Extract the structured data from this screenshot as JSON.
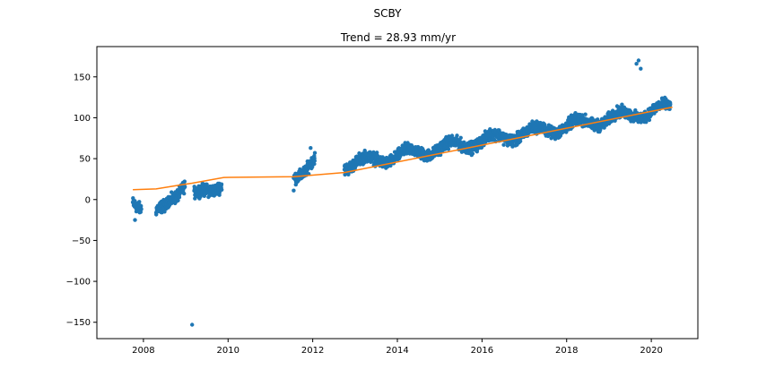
{
  "figure": {
    "suptitle": "SCBY"
  },
  "chart_data": {
    "type": "scatter",
    "title": "Trend = 28.93 mm/yr",
    "xlabel": "",
    "ylabel": "",
    "xlim": [
      2006.9,
      2021.1
    ],
    "ylim": [
      -170,
      187
    ],
    "x_ticks": [
      2008,
      2010,
      2012,
      2014,
      2016,
      2018,
      2020
    ],
    "y_ticks": [
      -150,
      -100,
      -50,
      0,
      50,
      100,
      150
    ],
    "grid": false,
    "colors": {
      "points": "#1f77b4",
      "trend": "#ff7f0e"
    },
    "series": [
      {
        "type": "scatter",
        "values_description_note_removed": null,
        "segments": [
          {
            "x_start": 2007.75,
            "x_end": 2007.95,
            "y_start": 2,
            "y_end": -10
          },
          {
            "x_start": 2008.3,
            "x_end": 2008.55,
            "y_start": -18,
            "y_end": -5
          },
          {
            "x_start": 2008.55,
            "x_end": 2008.98,
            "y_start": 0,
            "y_end": 18
          },
          {
            "x_start": 2009.2,
            "x_end": 2009.85,
            "y_start": 2,
            "y_end": 22
          },
          {
            "x_start": 2011.55,
            "x_end": 2012.05,
            "y_start": 28,
            "y_end": 50
          },
          {
            "x_start": 2012.75,
            "x_end": 2020.45,
            "y_start": 42,
            "y_end": 112
          }
        ],
        "outliers": [
          [
            2009.15,
            -153
          ],
          [
            2007.8,
            -25
          ],
          [
            2011.55,
            11
          ],
          [
            2011.95,
            63
          ],
          [
            2019.65,
            166
          ],
          [
            2019.7,
            170
          ],
          [
            2019.75,
            160
          ]
        ]
      },
      {
        "type": "line",
        "x": [
          2007.75,
          2008.3,
          2008.9,
          2009.15,
          2009.9,
          2011.55,
          2012.75,
          2020.5
        ],
        "values": [
          12,
          13,
          18,
          20,
          27,
          28,
          33,
          113
        ]
      }
    ]
  }
}
